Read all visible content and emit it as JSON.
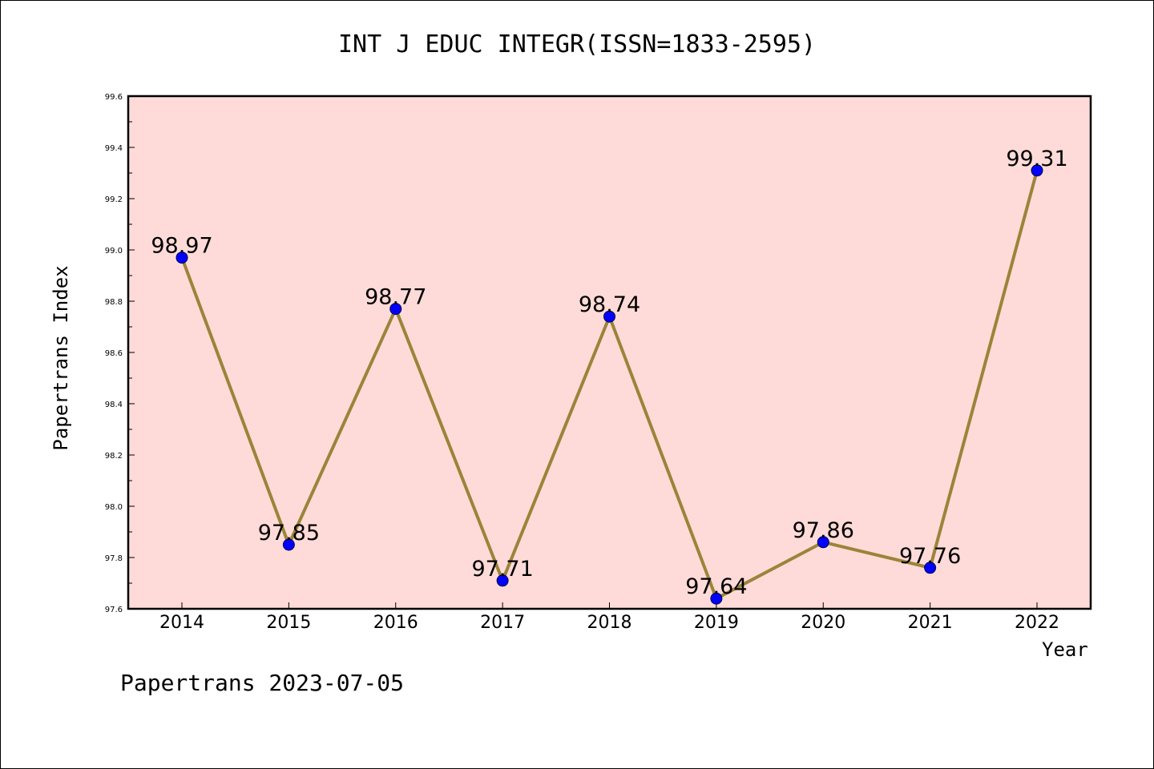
{
  "chart_data": {
    "type": "line",
    "title": "INT J EDUC INTEGR(ISSN=1833-2595)",
    "xlabel": "Year",
    "ylabel": "Papertrans Index",
    "categories": [
      "2014",
      "2015",
      "2016",
      "2017",
      "2018",
      "2019",
      "2020",
      "2021",
      "2022"
    ],
    "series": [
      {
        "values": [
          98.97,
          97.85,
          98.77,
          97.71,
          98.74,
          97.64,
          97.86,
          97.76,
          99.31
        ],
        "data_labels": [
          "98.97",
          "97.85",
          "98.77",
          "97.71",
          "98.74",
          "97.64",
          "97.86",
          "97.76",
          "99.31"
        ]
      }
    ],
    "ylim": [
      97.6,
      99.6
    ],
    "yticks": [
      "97.6",
      "97.8",
      "98.0",
      "98.2",
      "98.4",
      "98.6",
      "98.8",
      "99.0",
      "99.2",
      "99.4",
      "99.6"
    ],
    "grid": false,
    "colors": {
      "plot_background": "#fedbd8",
      "line": "#9b8439",
      "marker": "#0000ff",
      "marker_edge": "#00004a"
    }
  },
  "footer": {
    "text": "Papertrans 2023-07-05"
  }
}
